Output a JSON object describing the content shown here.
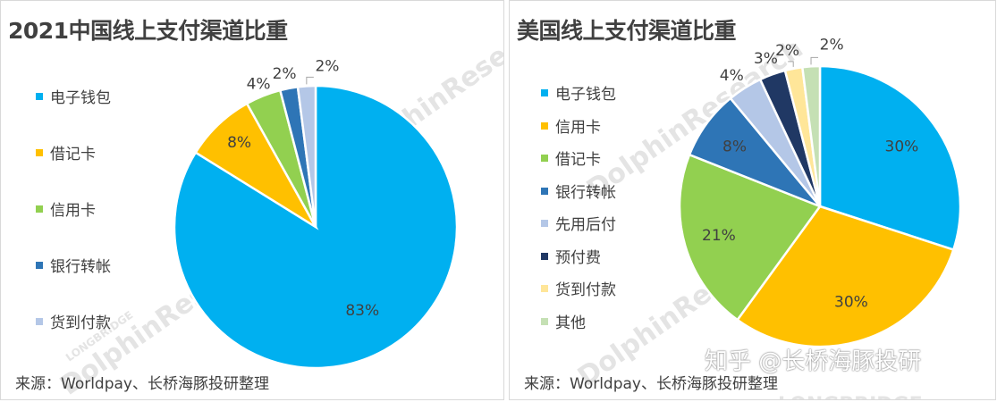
{
  "chart_data": [
    {
      "type": "pie",
      "title": "2021中国线上支付渠道比重",
      "categories": [
        "电子钱包",
        "借记卡",
        "信用卡",
        "银行转帐",
        "货到付款"
      ],
      "values": [
        83,
        8,
        4,
        2,
        2
      ],
      "labels": [
        "83%",
        "8%",
        "4%",
        "2%",
        "2%"
      ],
      "colors": [
        "#00B0F0",
        "#FFC000",
        "#92D050",
        "#2E75B6",
        "#B4C7E7"
      ],
      "legend_position": "left",
      "source": "来源：Worldpay、长桥海豚投研整理"
    },
    {
      "type": "pie",
      "title": "美国线上支付渠道比重",
      "categories": [
        "电子钱包",
        "信用卡",
        "借记卡",
        "银行转帐",
        "先用后付",
        "预付费",
        "货到付款",
        "其他"
      ],
      "values": [
        30,
        30,
        21,
        8,
        4,
        3,
        2,
        2
      ],
      "labels": [
        "30%",
        "30%",
        "21%",
        "8%",
        "4%",
        "3%",
        "2%",
        "2%"
      ],
      "colors": [
        "#00B0F0",
        "#FFC000",
        "#92D050",
        "#2E75B6",
        "#B4C7E7",
        "#203864",
        "#FFE699",
        "#C5E0B4"
      ],
      "legend_position": "left",
      "source": "来源：Worldpay、长桥海豚投研整理"
    }
  ],
  "watermark": {
    "brand": "DolphinResearch",
    "brand_small": "LONGBRIDGE",
    "zhihu": "知乎 @长桥海豚投研"
  }
}
